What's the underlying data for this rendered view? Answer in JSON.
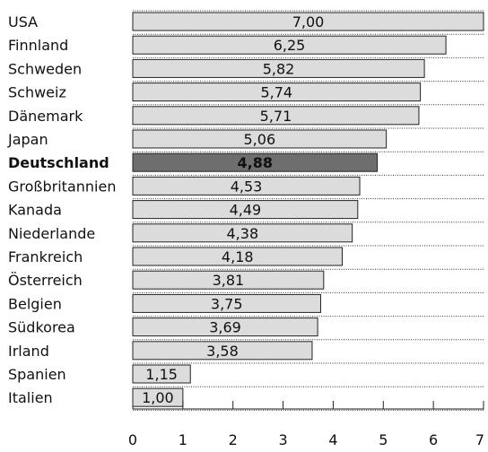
{
  "chart_data": {
    "type": "bar",
    "orientation": "horizontal",
    "title": "",
    "xlabel": "",
    "ylabel": "",
    "xlim": [
      0,
      7
    ],
    "x_ticks": [
      "0",
      "1",
      "2",
      "3",
      "4",
      "5",
      "6",
      "7"
    ],
    "grid": false,
    "categories": [
      "USA",
      "Finnland",
      "Schweden",
      "Schweiz",
      "Dänemark",
      "Japan",
      "Deutschland",
      "Großbritannien",
      "Kanada",
      "Niederlande",
      "Frankreich",
      "Österreich",
      "Belgien",
      "Südkorea",
      "Irland",
      "Spanien",
      "Italien"
    ],
    "values": [
      7.0,
      6.25,
      5.82,
      5.74,
      5.71,
      5.06,
      4.88,
      4.53,
      4.49,
      4.38,
      4.18,
      3.81,
      3.75,
      3.69,
      3.58,
      1.15,
      1.0
    ],
    "value_labels": [
      "7,00",
      "6,25",
      "5,82",
      "5,74",
      "5,71",
      "5,06",
      "4,88",
      "4,53",
      "4,49",
      "4,38",
      "4,18",
      "3,81",
      "3,75",
      "3,69",
      "3,58",
      "1,15",
      "1,00"
    ],
    "highlight_category": "Deutschland",
    "colors": {
      "bar": "#dcdcdc",
      "bar_highlight": "#6e6e6e",
      "bar_stroke": "#222222",
      "axis": "#222222",
      "separator": "#333333"
    }
  }
}
